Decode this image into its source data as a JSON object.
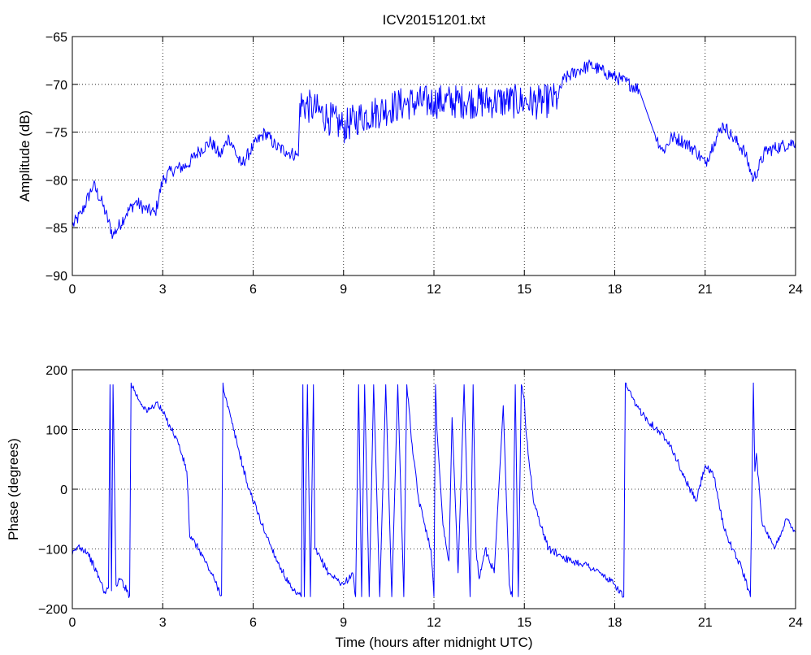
{
  "chart_data": [
    {
      "type": "line",
      "title": "ICV20151201.txt",
      "xlabel": "",
      "ylabel": "Amplitude (dB)",
      "xlim": [
        0,
        24
      ],
      "ylim": [
        -90,
        -65
      ],
      "x_ticks": [
        "0",
        "3",
        "6",
        "9",
        "12",
        "15",
        "18",
        "21",
        "24"
      ],
      "y_ticks": [
        "-65",
        "-70",
        "-75",
        "-80",
        "-85",
        "-90"
      ],
      "grid": true,
      "line_color": "#0000ff",
      "series": [
        {
          "x": [
            0,
            0.3,
            0.7,
            1.0,
            1.35,
            1.8,
            2.1,
            2.4,
            2.75,
            3.0,
            3.3,
            3.8,
            4.2,
            4.6,
            4.9,
            5.2,
            5.6,
            6.0,
            6.4,
            6.75,
            7.1,
            7.5,
            7.55,
            8.0,
            8.5,
            9.0,
            9.5,
            10.0,
            11.0,
            12.0,
            13.0,
            14.0,
            15.0,
            15.5,
            16.1,
            16.3,
            16.8,
            17.2,
            17.7,
            18.2,
            18.8,
            19.3,
            19.6,
            19.9,
            20.3,
            20.7,
            21.0,
            21.3,
            21.6,
            21.9,
            22.3,
            22.6,
            23.0,
            23.5,
            24.0
          ],
          "y": [
            -84.8,
            -83.5,
            -80.5,
            -82.5,
            -85.8,
            -83.5,
            -82.3,
            -83.0,
            -83.5,
            -80.0,
            -79.0,
            -78.5,
            -77.0,
            -76.0,
            -77.5,
            -75.5,
            -78.5,
            -76.5,
            -75.0,
            -76.5,
            -77.0,
            -77.5,
            -72.0,
            -72.5,
            -73.5,
            -74.5,
            -73.5,
            -73.0,
            -72.0,
            -71.8,
            -71.8,
            -71.8,
            -71.8,
            -71.9,
            -71.5,
            -69.5,
            -68.5,
            -68.0,
            -68.8,
            -69.5,
            -70.5,
            -75.0,
            -77.0,
            -75.5,
            -76.0,
            -77.0,
            -78.3,
            -76.0,
            -74.2,
            -75.5,
            -77.0,
            -80.0,
            -77.0,
            -76.5,
            -76.0
          ]
        }
      ]
    },
    {
      "type": "line",
      "title": "",
      "xlabel": "Time (hours after midnight UTC)",
      "ylabel": "Phase (degrees)",
      "xlim": [
        0,
        24
      ],
      "ylim": [
        -200,
        200
      ],
      "x_ticks": [
        "0",
        "3",
        "6",
        "9",
        "12",
        "15",
        "18",
        "21",
        "24"
      ],
      "y_ticks": [
        "200",
        "100",
        "0",
        "-100",
        "-200"
      ],
      "grid": true,
      "line_color": "#0000ff",
      "series": [
        {
          "x": [
            0,
            0.2,
            0.5,
            0.9,
            1.1,
            1.2,
            1.25,
            1.3,
            1.35,
            1.45,
            1.6,
            1.9,
            1.95,
            2.2,
            2.5,
            2.8,
            3.1,
            3.5,
            3.8,
            3.9,
            4.2,
            4.7,
            4.95,
            5.0,
            5.05,
            5.3,
            5.8,
            6.3,
            6.8,
            7.3,
            7.6,
            7.65,
            7.7,
            7.8,
            7.9,
            8.0,
            8.05,
            8.5,
            9.0,
            9.3,
            9.4,
            9.5,
            9.6,
            9.7,
            9.85,
            10.0,
            10.2,
            10.4,
            10.6,
            10.8,
            11.0,
            11.1,
            11.3,
            11.5,
            11.7,
            11.9,
            12.0,
            12.05,
            12.1,
            12.3,
            12.5,
            12.6,
            12.8,
            13.0,
            13.2,
            13.3,
            13.4,
            13.5,
            13.7,
            14.0,
            14.3,
            14.5,
            14.6,
            14.7,
            14.8,
            14.9,
            15.0,
            15.05,
            15.3,
            15.8,
            16.2,
            16.5,
            17.0,
            17.5,
            18.0,
            18.3,
            18.35,
            18.4,
            18.7,
            19.2,
            19.8,
            20.3,
            20.7,
            21.0,
            21.3,
            21.6,
            21.9,
            22.2,
            22.5,
            22.6,
            22.65,
            22.7,
            22.9,
            23.3,
            23.7,
            24.0
          ],
          "y": [
            -110,
            -95,
            -105,
            -150,
            -175,
            -165,
            175,
            -170,
            175,
            -160,
            -150,
            -178,
            178,
            150,
            130,
            145,
            120,
            80,
            30,
            -80,
            -100,
            -150,
            -178,
            178,
            160,
            110,
            10,
            -60,
            -120,
            -170,
            -180,
            175,
            -180,
            175,
            -180,
            175,
            -100,
            -140,
            -160,
            -140,
            -180,
            175,
            -180,
            175,
            -180,
            175,
            -180,
            175,
            -180,
            175,
            -180,
            175,
            60,
            -20,
            -60,
            -100,
            -180,
            175,
            100,
            -60,
            -120,
            120,
            -140,
            175,
            -180,
            175,
            -100,
            -150,
            -100,
            -140,
            140,
            -160,
            -180,
            175,
            -180,
            175,
            150,
            100,
            -20,
            -100,
            -110,
            -120,
            -125,
            -140,
            -160,
            -180,
            178,
            170,
            140,
            110,
            80,
            20,
            -20,
            40,
            20,
            -60,
            -100,
            -130,
            -180,
            178,
            30,
            60,
            -60,
            -100,
            -50,
            -70
          ]
        }
      ]
    }
  ]
}
